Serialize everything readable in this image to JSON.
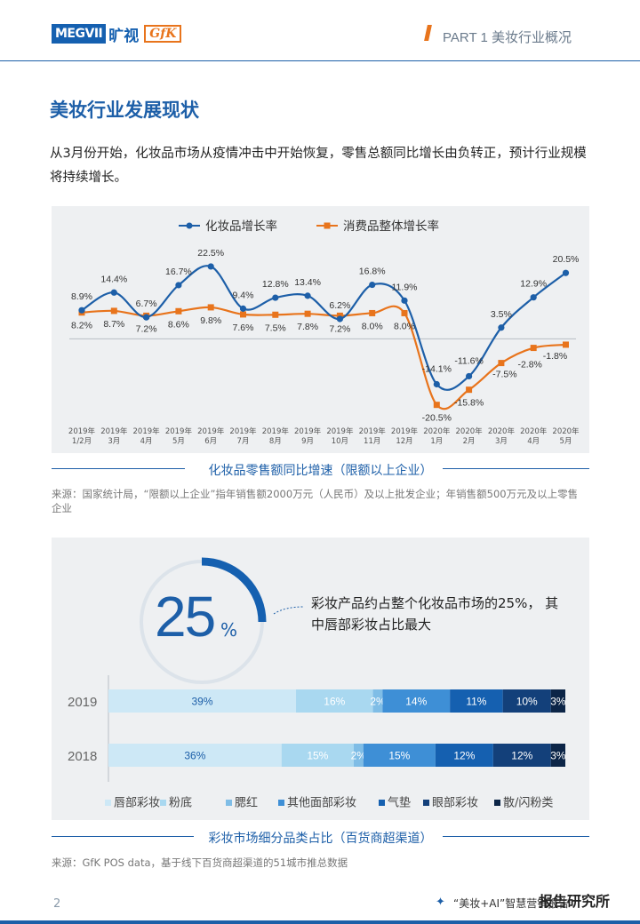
{
  "header": {
    "logo_megvii": "MEGVII",
    "logo_kuangshi": "旷视",
    "logo_gfk": "GfK",
    "part_title": "PART 1 美妆行业概况"
  },
  "section_title": "美妆行业发展现状",
  "intro": "从3月份开始，化妆品市场从疫情冲击中开始恢复，零售总额同比增长由负转正，预计行业规模将持续增长。",
  "colors": {
    "brand_blue": "#1d5fa8",
    "accent_orange": "#e8741c",
    "panel_bg": "#eef0f2"
  },
  "chart1": {
    "caption": "化妆品零售额同比增速（限额以上企业）",
    "source": "来源：国家统计局，“限额以上企业”指年销售额2000万元（人民币）及以上批发企业；年销售额500万元及以上零售企业"
  },
  "chart2": {
    "big_number": "25",
    "big_unit": "%",
    "gauge_fraction": 0.25,
    "note": "彩妆产品约占整个化妆品市场的25%， 其中唇部彩妆占比最大",
    "caption": "彩妆市场细分品类占比（百货商超渠道）",
    "source": "来源：GfK POS data，基于线下百货商超渠道的51城市推总数据"
  },
  "chart_data": [
    {
      "type": "line",
      "categories": [
        "2019年\n1/2月",
        "2019年\n3月",
        "2019年\n4月",
        "2019年\n5月",
        "2019年\n6月",
        "2019年\n7月",
        "2019年\n8月",
        "2019年\n9月",
        "2019年\n10月",
        "2019年\n11月",
        "2019年\n12月",
        "2020年\n1月",
        "2020年\n2月",
        "2020年\n3月",
        "2020年\n4月",
        "2020年\n5月"
      ],
      "series": [
        {
          "name": "化妆品增长率",
          "color": "#1d5fa8",
          "values": [
            8.9,
            14.4,
            6.7,
            16.7,
            22.5,
            9.4,
            12.8,
            13.4,
            6.2,
            16.8,
            11.9,
            -14.1,
            -11.6,
            3.5,
            12.9,
            20.5
          ],
          "labels": [
            "8.9%",
            "14.4%",
            "6.7%",
            "16.7%",
            "22.5%",
            "9.4%",
            "12.8%",
            "13.4%",
            "6.2%",
            "16.8%",
            "11.9%",
            "-14.1%",
            "-11.6%",
            "3.5%",
            "12.9%",
            "20.5%"
          ]
        },
        {
          "name": "消费品整体增长率",
          "color": "#e8741c",
          "values": [
            8.2,
            8.7,
            7.2,
            8.6,
            9.8,
            7.6,
            7.5,
            7.8,
            7.2,
            8.0,
            8.0,
            -20.5,
            -15.8,
            -7.5,
            -2.8,
            -1.8
          ],
          "labels": [
            "8.2%",
            "8.7%",
            "7.2%",
            "8.6%",
            "9.8%",
            "7.6%",
            "7.5%",
            "7.8%",
            "7.2%",
            "8.0%",
            "8.0%",
            "-20.5%",
            "-15.8%",
            "-7.5%",
            "-2.8%",
            "-1.8%"
          ]
        }
      ],
      "ylim": [
        -25,
        28
      ],
      "grid": false,
      "legend": "top-center"
    },
    {
      "type": "bar",
      "stacked": true,
      "orientation": "horizontal",
      "categories": [
        "2019",
        "2018"
      ],
      "series": [
        {
          "name": "唇部彩妆",
          "color": "#cde8f6",
          "values": [
            39,
            36
          ],
          "labels": [
            "39%",
            "36%"
          ]
        },
        {
          "name": "粉底",
          "color": "#a9d8f0",
          "values": [
            16,
            15
          ],
          "labels": [
            "16%",
            "15%"
          ]
        },
        {
          "name": "腮红",
          "color": "#7fbde6",
          "values": [
            2,
            2
          ],
          "labels": [
            "2%",
            "2%"
          ]
        },
        {
          "name": "其他面部彩妆",
          "color": "#3e8fd6",
          "values": [
            14,
            15
          ],
          "labels": [
            "14%",
            "15%"
          ]
        },
        {
          "name": "气垫",
          "color": "#1560b0",
          "values": [
            11,
            12
          ],
          "labels": [
            "11%",
            "12%"
          ]
        },
        {
          "name": "眼部彩妆",
          "color": "#13407a",
          "values": [
            10,
            12
          ],
          "labels": [
            "10%",
            "12%"
          ]
        },
        {
          "name": "散/闪粉类",
          "color": "#0c2547",
          "values": [
            3,
            3
          ],
          "labels": [
            "3%",
            "3%"
          ]
        }
      ],
      "legend": "bottom"
    }
  ],
  "footer": {
    "page_number": "2",
    "star": "✦",
    "text": "“美妆+AI”智慧营销报告",
    "brand": "报告研究所"
  }
}
